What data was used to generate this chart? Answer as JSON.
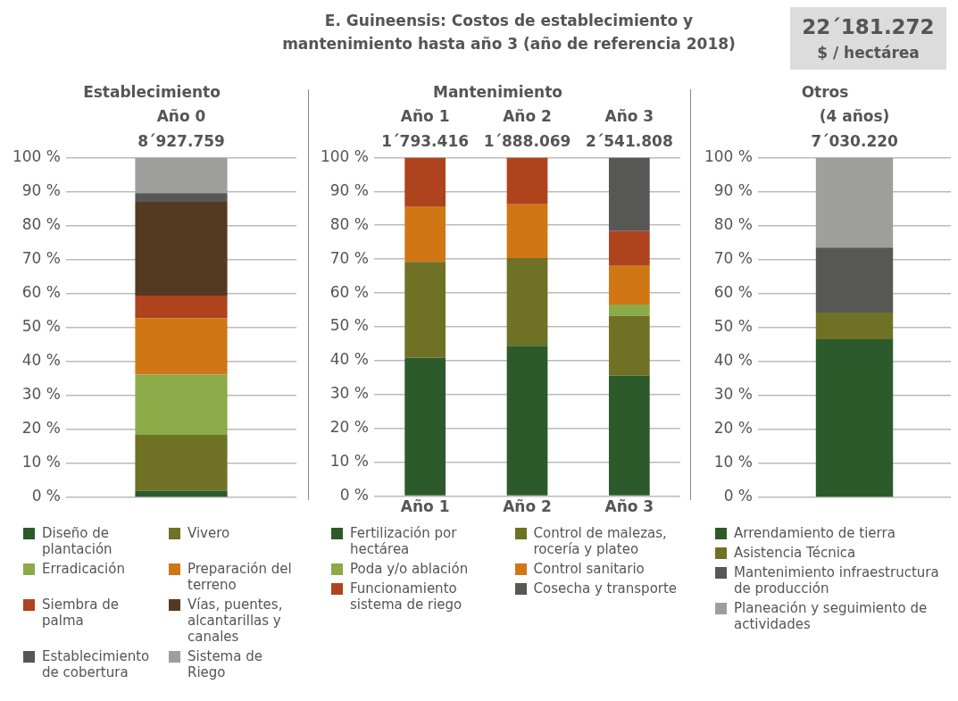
{
  "chart_data": [
    {
      "type": "other",
      "title": "E. Guineensis: Costos de establecimiento y mantenimiento hasta año 3 (año de referencia 2018)",
      "annotations": [
        "22´181.272",
        "$ / hectárea"
      ]
    },
    {
      "type": "bar",
      "title": "Establecimiento",
      "categories": [
        "Año 0"
      ],
      "totals": [
        "8´927.759"
      ],
      "stacked": true,
      "grid": "y",
      "legend": "bottom",
      "tick_labels": "y",
      "ylim": [
        0,
        100
      ],
      "yticks": [
        {
          "value": 0,
          "label": "0 %"
        },
        {
          "value": 10,
          "label": "10 %"
        },
        {
          "value": 20,
          "label": "20 %"
        },
        {
          "value": 30,
          "label": "30 %"
        },
        {
          "value": 40,
          "label": "40 %"
        },
        {
          "value": 50,
          "label": "50 %"
        },
        {
          "value": 60,
          "label": "60 %"
        },
        {
          "value": 70,
          "label": "70 %"
        },
        {
          "value": 80,
          "label": "80 %"
        },
        {
          "value": 90,
          "label": "90 %"
        },
        {
          "value": 100,
          "label": "100 %"
        }
      ],
      "series": [
        {
          "name": "Diseño de plantación",
          "color": "#2d5a2b",
          "values": [
            2
          ]
        },
        {
          "name": "Vivero",
          "color": "#6f7124",
          "values": [
            16.4
          ]
        },
        {
          "name": "Erradicación",
          "color": "#8aab47",
          "values": [
            17.7
          ]
        },
        {
          "name": "Preparación del terreno",
          "color": "#d07614",
          "values": [
            16.6
          ]
        },
        {
          "name": "Siembra de palma",
          "color": "#ae431e",
          "values": [
            6.7
          ]
        },
        {
          "name": "Vías, puentes, alcantarillas y canales",
          "color": "#533a21",
          "values": [
            27.6
          ]
        },
        {
          "name": "Establecimiento de cobertura",
          "color": "#575755",
          "values": [
            2.5
          ]
        },
        {
          "name": "Sistema de Riego",
          "color": "#9e9e9c",
          "values": [
            10.5
          ]
        }
      ]
    },
    {
      "type": "bar",
      "title": "Mantenimiento",
      "categories": [
        "Año 1",
        "Año 2",
        "Año 3"
      ],
      "totals": [
        "1´793.416",
        "1´888.069",
        "2´541.808"
      ],
      "stacked": true,
      "grid": "y",
      "legend": "bottom",
      "ylim": [
        0,
        100
      ],
      "yticks": [
        {
          "value": 0,
          "label": "0 %"
        },
        {
          "value": 10,
          "label": "10 %"
        },
        {
          "value": 20,
          "label": "20 %"
        },
        {
          "value": 30,
          "label": "30 %"
        },
        {
          "value": 40,
          "label": "40 %"
        },
        {
          "value": 50,
          "label": "50 %"
        },
        {
          "value": 60,
          "label": "60 %"
        },
        {
          "value": 70,
          "label": "70 %"
        },
        {
          "value": 80,
          "label": "80 %"
        },
        {
          "value": 90,
          "label": "90 %"
        },
        {
          "value": 100,
          "label": "100 %"
        }
      ],
      "series": [
        {
          "name": "Fertilización por hectárea",
          "color": "#2d5a2b",
          "values": [
            40.9,
            44.4,
            35.6
          ]
        },
        {
          "name": "Control de malezas, rocería y plateo",
          "color": "#6f7124",
          "values": [
            28.3,
            25.9,
            17.6
          ]
        },
        {
          "name": "Poda y/o ablación",
          "color": "#8aab47",
          "values": [
            0,
            0,
            3.4
          ]
        },
        {
          "name": "Control sanitario",
          "color": "#d07614",
          "values": [
            16.2,
            15.9,
            11.4
          ]
        },
        {
          "name": "Funcionamiento sistema de riego",
          "color": "#ae431e",
          "values": [
            14.6,
            13.8,
            10.3
          ]
        },
        {
          "name": "Cosecha y transporte",
          "color": "#575755",
          "values": [
            0,
            0,
            21.7
          ]
        }
      ]
    },
    {
      "type": "bar",
      "title": "Otros",
      "categories": [
        "(4 años)"
      ],
      "totals": [
        "7´030.220"
      ],
      "stacked": true,
      "grid": "y",
      "legend": "bottom",
      "tick_labels": "y",
      "ylim": [
        0,
        100
      ],
      "yticks": [
        {
          "value": 0,
          "label": "0 %"
        },
        {
          "value": 10,
          "label": "10 %"
        },
        {
          "value": 20,
          "label": "20 %"
        },
        {
          "value": 30,
          "label": "30 %"
        },
        {
          "value": 40,
          "label": "40 %"
        },
        {
          "value": 50,
          "label": "50 %"
        },
        {
          "value": 60,
          "label": "60 %"
        },
        {
          "value": 70,
          "label": "70 %"
        },
        {
          "value": 80,
          "label": "80 %"
        },
        {
          "value": 90,
          "label": "90 %"
        },
        {
          "value": 100,
          "label": "100 %"
        }
      ],
      "series": [
        {
          "name": "Arrendamiento de tierra",
          "color": "#2d5a2b",
          "values": [
            46.5
          ]
        },
        {
          "name": "Asistencia Técnica",
          "color": "#6f7124",
          "values": [
            7.9
          ]
        },
        {
          "name": "Mantenimiento infraestructura de producción",
          "color": "#575755",
          "values": [
            19.1
          ]
        },
        {
          "name": "Planeación y seguimiento de actividades",
          "color": "#9e9e9c",
          "values": [
            26.5
          ]
        }
      ]
    }
  ]
}
